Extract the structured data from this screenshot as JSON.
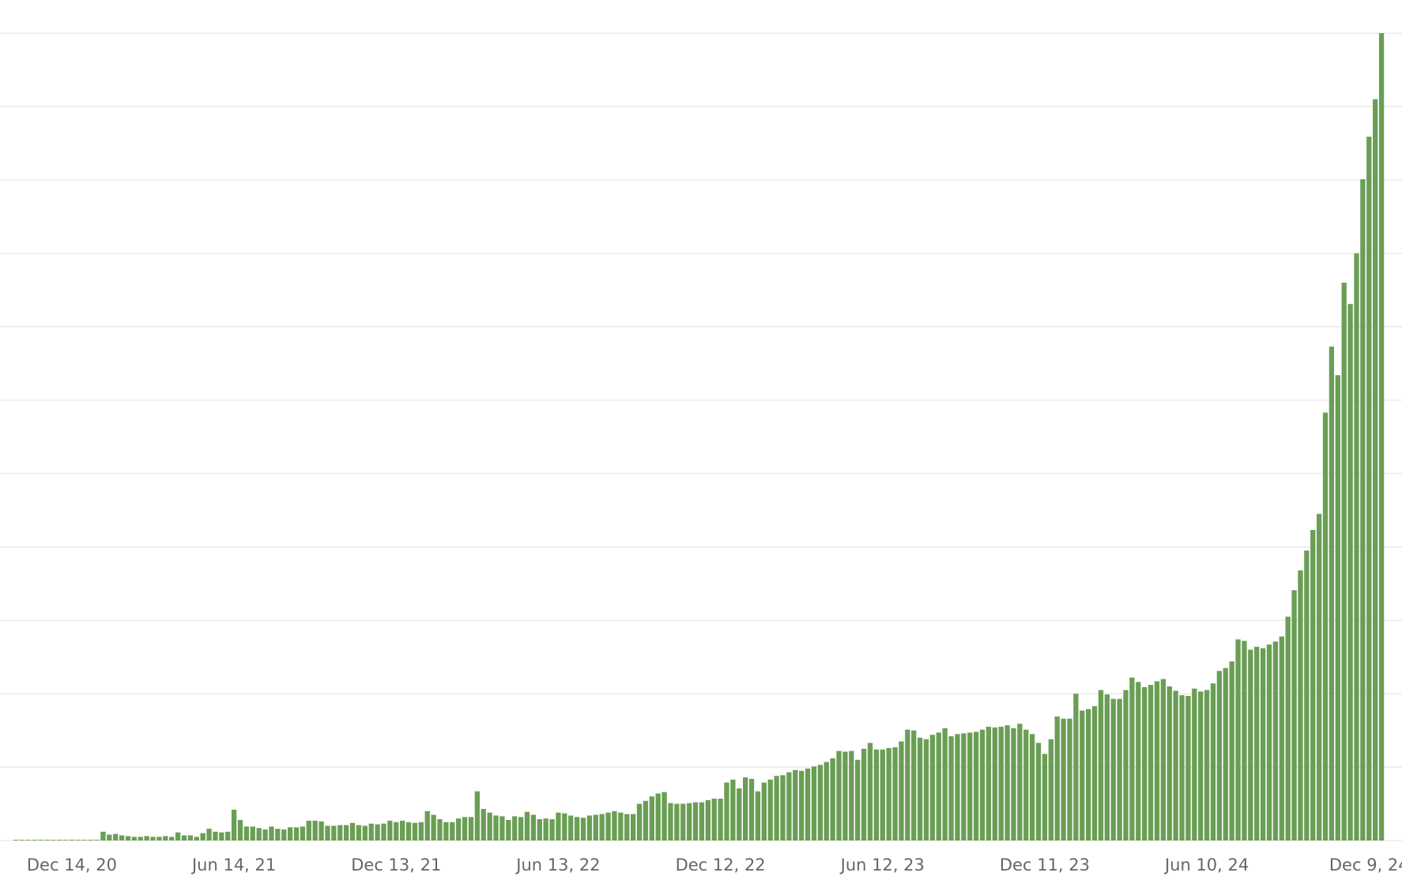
{
  "chart_data": {
    "type": "bar",
    "title": "",
    "xlabel": "",
    "ylabel": "",
    "ylim": [
      0,
      11
    ],
    "grid": true,
    "y_tick_labels_shown": false,
    "bar_color": "#6a9e55",
    "gridline_color": "#e6e6e6",
    "tick_label_color": "#666666",
    "x_tick_labels": [
      "Dec 14, 20",
      "Jun 14, 21",
      "Dec 13, 21",
      "Jun 13, 22",
      "Dec 12, 22",
      "Jun 12, 23",
      "Dec 11, 23",
      "Jun 10, 24",
      "Dec 9, 24"
    ],
    "first_week": "Oct 12, 20",
    "week_step_days": 7,
    "values": [
      0.01,
      0.01,
      0.01,
      0.01,
      0.01,
      0.01,
      0.01,
      0.01,
      0.01,
      0.01,
      0.01,
      0.01,
      0.01,
      0.01,
      0.12,
      0.08,
      0.09,
      0.07,
      0.06,
      0.05,
      0.05,
      0.06,
      0.05,
      0.05,
      0.06,
      0.05,
      0.11,
      0.07,
      0.07,
      0.05,
      0.1,
      0.16,
      0.12,
      0.11,
      0.12,
      0.42,
      0.28,
      0.19,
      0.19,
      0.17,
      0.15,
      0.19,
      0.16,
      0.15,
      0.18,
      0.18,
      0.19,
      0.27,
      0.27,
      0.26,
      0.2,
      0.2,
      0.21,
      0.21,
      0.24,
      0.21,
      0.2,
      0.23,
      0.22,
      0.23,
      0.27,
      0.25,
      0.27,
      0.25,
      0.24,
      0.25,
      0.4,
      0.35,
      0.29,
      0.25,
      0.25,
      0.3,
      0.32,
      0.32,
      0.67,
      0.43,
      0.38,
      0.34,
      0.33,
      0.28,
      0.33,
      0.32,
      0.39,
      0.35,
      0.29,
      0.3,
      0.29,
      0.38,
      0.37,
      0.34,
      0.32,
      0.31,
      0.34,
      0.35,
      0.36,
      0.38,
      0.4,
      0.38,
      0.36,
      0.36,
      0.5,
      0.54,
      0.6,
      0.64,
      0.66,
      0.51,
      0.5,
      0.5,
      0.51,
      0.52,
      0.52,
      0.55,
      0.57,
      0.57,
      0.79,
      0.83,
      0.71,
      0.86,
      0.84,
      0.67,
      0.79,
      0.83,
      0.88,
      0.89,
      0.93,
      0.96,
      0.95,
      0.98,
      1.01,
      1.03,
      1.07,
      1.12,
      1.22,
      1.21,
      1.22,
      1.1,
      1.25,
      1.33,
      1.24,
      1.24,
      1.26,
      1.27,
      1.35,
      1.51,
      1.5,
      1.4,
      1.38,
      1.44,
      1.47,
      1.53,
      1.42,
      1.45,
      1.46,
      1.47,
      1.48,
      1.51,
      1.55,
      1.54,
      1.55,
      1.57,
      1.53,
      1.59,
      1.51,
      1.45,
      1.33,
      1.18,
      1.38,
      1.69,
      1.66,
      1.66,
      2.0,
      1.77,
      1.79,
      1.83,
      2.05,
      1.99,
      1.93,
      1.93,
      2.05,
      2.22,
      2.16,
      2.09,
      2.12,
      2.17,
      2.2,
      2.1,
      2.04,
      1.98,
      1.97,
      2.07,
      2.03,
      2.05,
      2.14,
      2.31,
      2.35,
      2.44,
      2.74,
      2.72,
      2.6,
      2.64,
      2.62,
      2.67,
      2.71,
      2.78,
      3.05,
      3.41,
      3.68,
      3.95,
      4.23,
      4.45,
      5.83,
      6.73,
      6.34,
      7.6,
      7.31,
      8.0,
      9.01,
      9.59,
      10.1,
      11.0
    ]
  }
}
